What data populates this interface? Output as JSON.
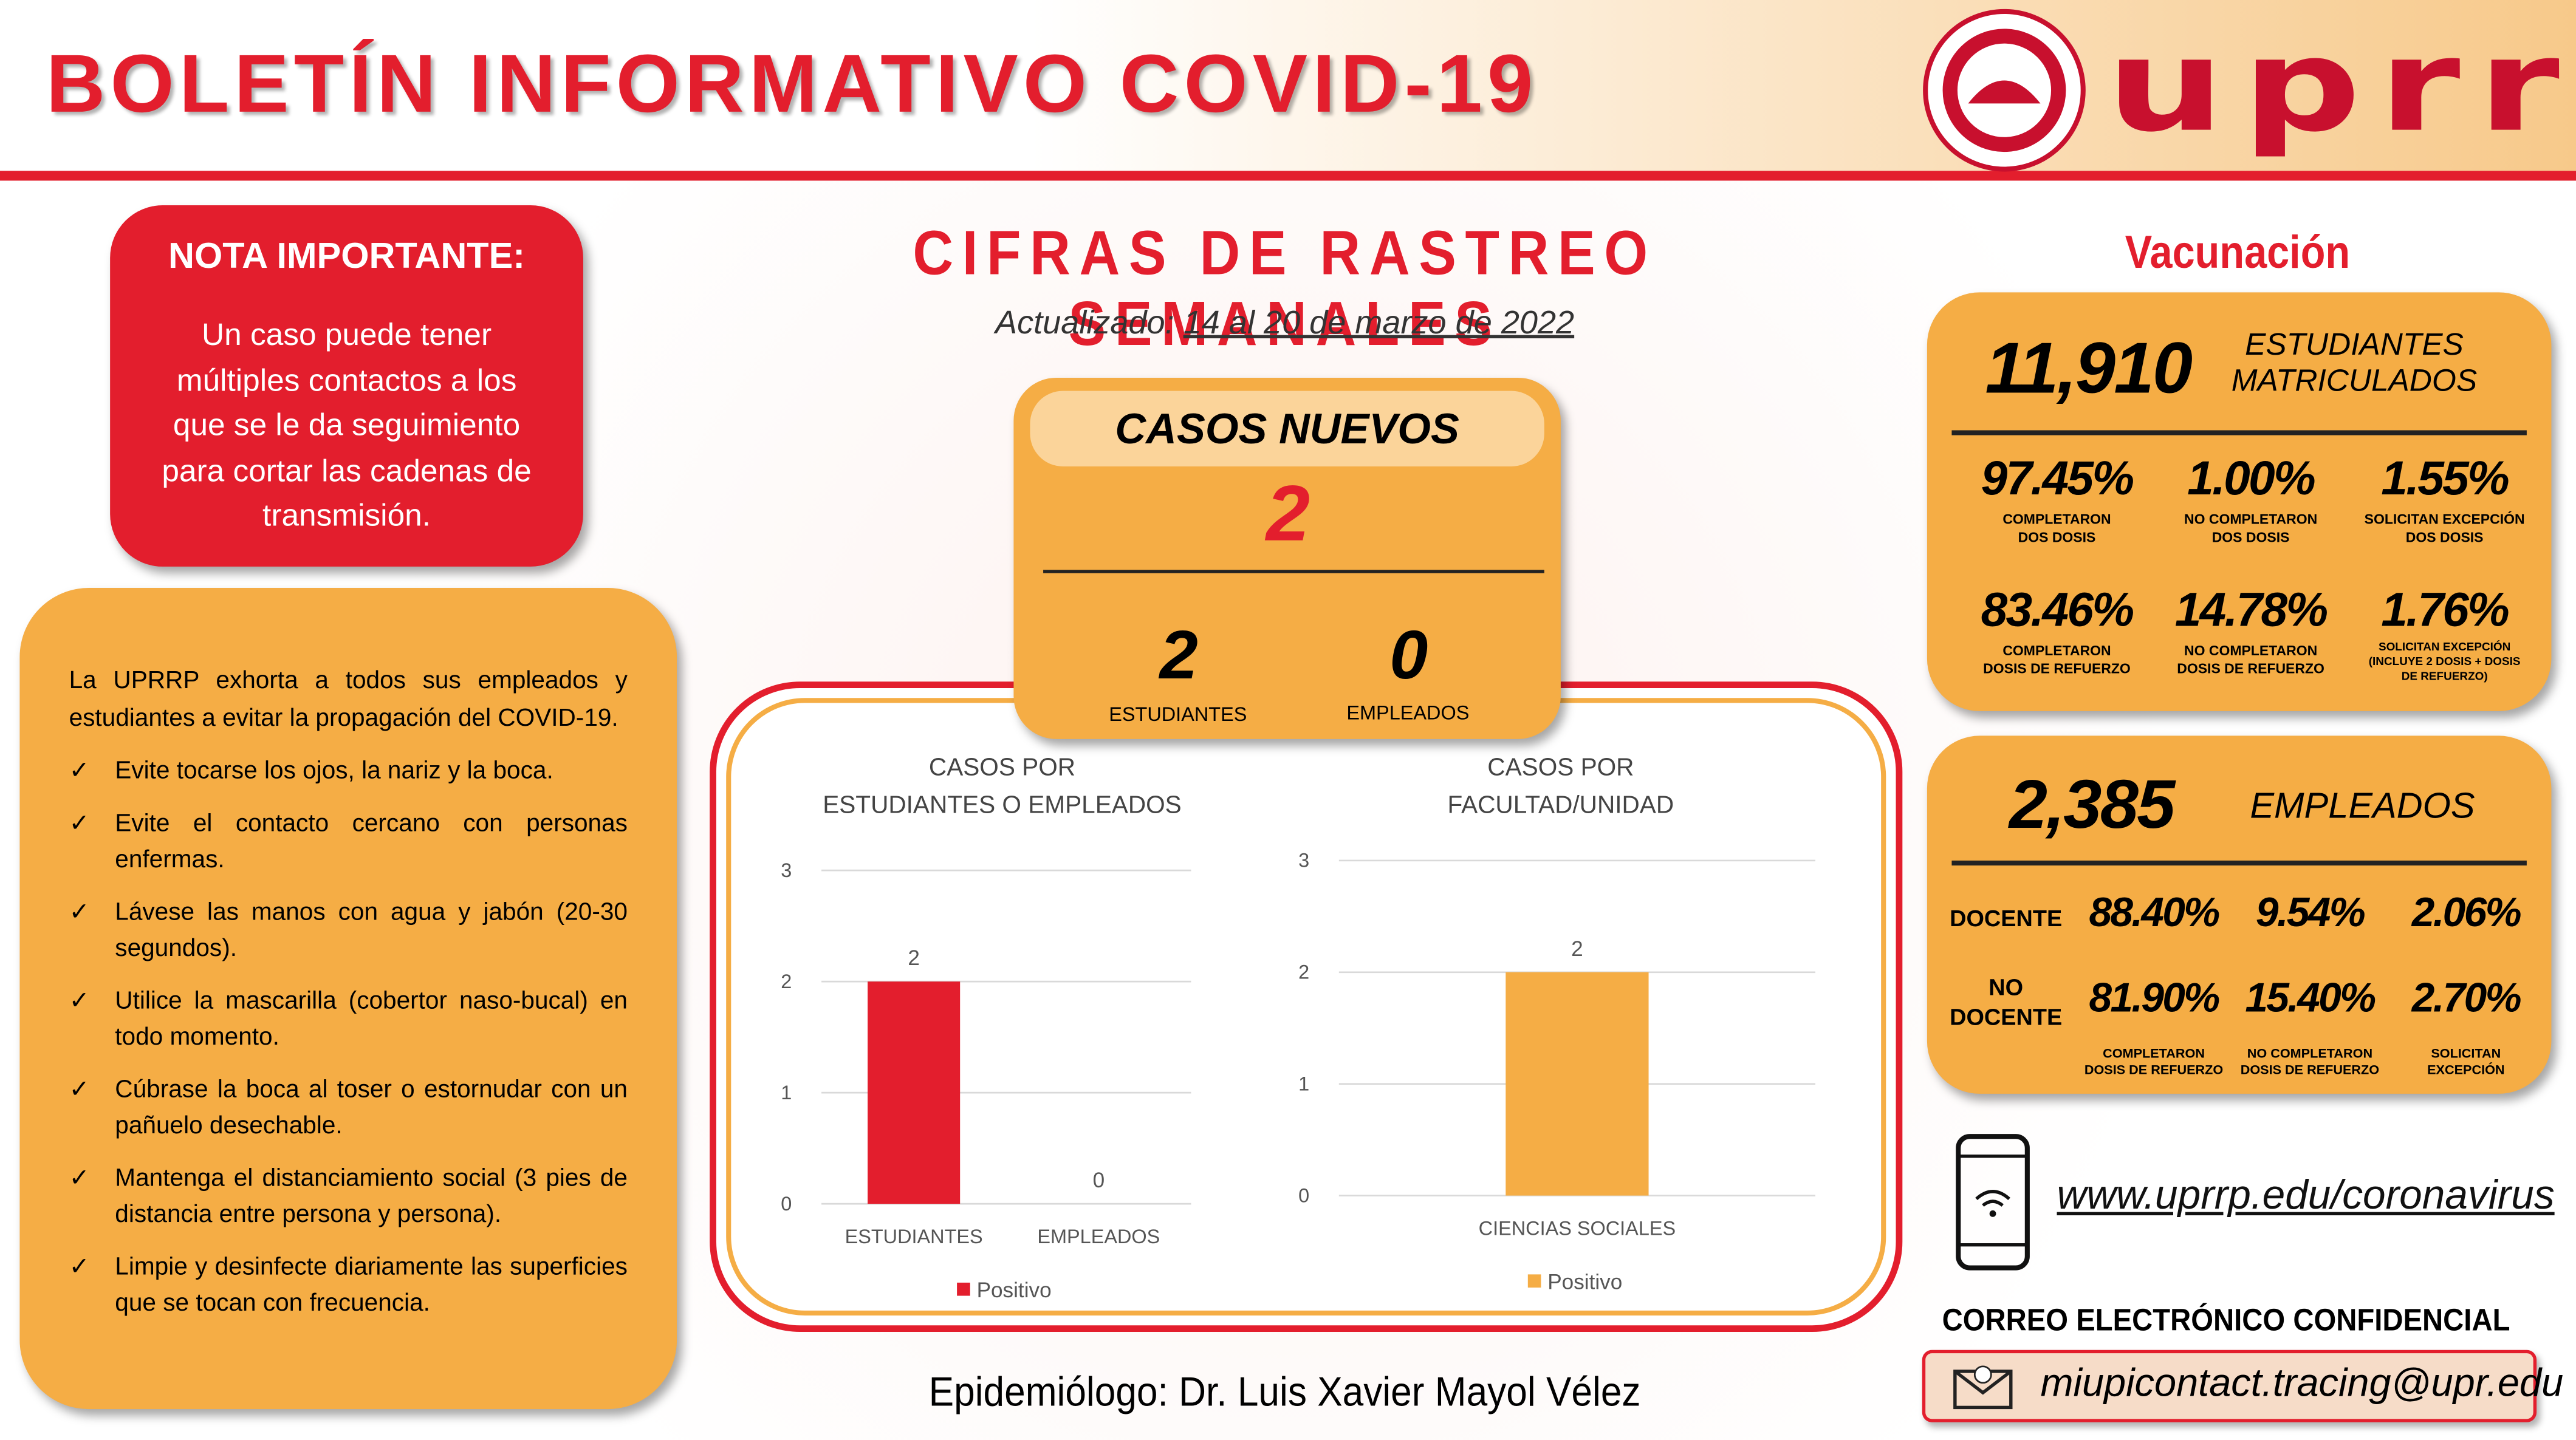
{
  "header": {
    "title": "BOLETÍN INFORMATIVO COVID-19",
    "logo_text": "uprrp"
  },
  "note": {
    "title": "NOTA IMPORTANTE:",
    "body": "Un caso puede tener múltiples contactos a los que se le da seguimiento para cortar las cadenas de transmisión."
  },
  "advice": {
    "intro": "La UPRRP exhorta a todos sus empleados y estudiantes a evitar la propagación del COVID-19.",
    "items": [
      "Evite tocarse los ojos, la nariz y la boca.",
      "Evite el contacto cercano con personas enfermas.",
      "Lávese las manos con agua y jabón (20-30 segundos).",
      "Utilice la mascarilla (cobertor naso-bucal) en todo momento.",
      "Cúbrase la boca al toser o estornudar con un pañuelo desechable.",
      "Mantenga el distanciamiento social (3 pies de distancia entre persona y persona).",
      "Limpie y desinfecte diariamente las superficies que se tocan con frecuencia."
    ]
  },
  "tracking": {
    "title": "CIFRAS DE RASTREO SEMANALES",
    "updated_label": "Actualizado:",
    "updated_dates": "14 al 20 de marzo de 2022",
    "new_cases_title": "CASOS NUEVOS",
    "new_cases": "2",
    "students_count": "2",
    "students_label": "ESTUDIANTES",
    "employees_count": "0",
    "employees_label": "EMPLEADOS"
  },
  "chart_data": [
    {
      "type": "bar",
      "title": "CASOS POR\nESTUDIANTES O EMPLEADOS",
      "categories": [
        "ESTUDIANTES",
        "EMPLEADOS"
      ],
      "series": [
        {
          "name": "Positivo",
          "color": "#e31e2d",
          "values": [
            2,
            0
          ]
        }
      ],
      "ylim": [
        0,
        3
      ],
      "yticks": [
        0,
        1,
        2,
        3
      ],
      "grid": true
    },
    {
      "type": "bar",
      "title": "CASOS POR\nFACULTAD/UNIDAD",
      "categories": [
        "CIENCIAS SOCIALES"
      ],
      "series": [
        {
          "name": "Positivo",
          "color": "#f5ad45",
          "values": [
            2
          ]
        }
      ],
      "ylim": [
        0,
        3
      ],
      "yticks": [
        0,
        1,
        2,
        3
      ],
      "grid": true
    }
  ],
  "vaccination": {
    "title": "Vacunación",
    "students": {
      "count": "11,910",
      "label": "ESTUDIANTES\nMATRICULADOS",
      "stats": [
        {
          "value": "97.45%",
          "label": "COMPLETARON\nDOS DOSIS"
        },
        {
          "value": "1.00%",
          "label": "NO COMPLETARON\nDOS DOSIS"
        },
        {
          "value": "1.55%",
          "label": "SOLICITAN EXCEPCIÓN\nDOS DOSIS"
        },
        {
          "value": "83.46%",
          "label": "COMPLETARON\nDOSIS DE REFUERZO"
        },
        {
          "value": "14.78%",
          "label": "NO COMPLETARON\nDOSIS DE REFUERZO"
        },
        {
          "value": "1.76%",
          "label": "SOLICITAN EXCEPCIÓN\n(INCLUYE 2 DOSIS + DOSIS\nDE REFUERZO)"
        }
      ]
    },
    "employees": {
      "count": "2,385",
      "label": "EMPLEADOS",
      "rows": [
        {
          "label": "DOCENTE",
          "values": [
            "88.40%",
            "9.54%",
            "2.06%"
          ]
        },
        {
          "label": "NO\nDOCENTE",
          "values": [
            "81.90%",
            "15.40%",
            "2.70%"
          ]
        }
      ],
      "columns": [
        "COMPLETARON\nDOSIS DE REFUERZO",
        "NO COMPLETARON\nDOSIS DE REFUERZO",
        "SOLICITAN\nEXCEPCIÓN"
      ]
    }
  },
  "contact": {
    "url": "www.uprrp.edu/coronavirus",
    "email_title": "CORREO ELECTRÓNICO CONFIDENCIAL",
    "email": "miupicontact.tracing@upr.edu"
  },
  "footer": {
    "epidemiologist": "Epidemiólogo: Dr. Luis Xavier Mayol Vélez"
  }
}
